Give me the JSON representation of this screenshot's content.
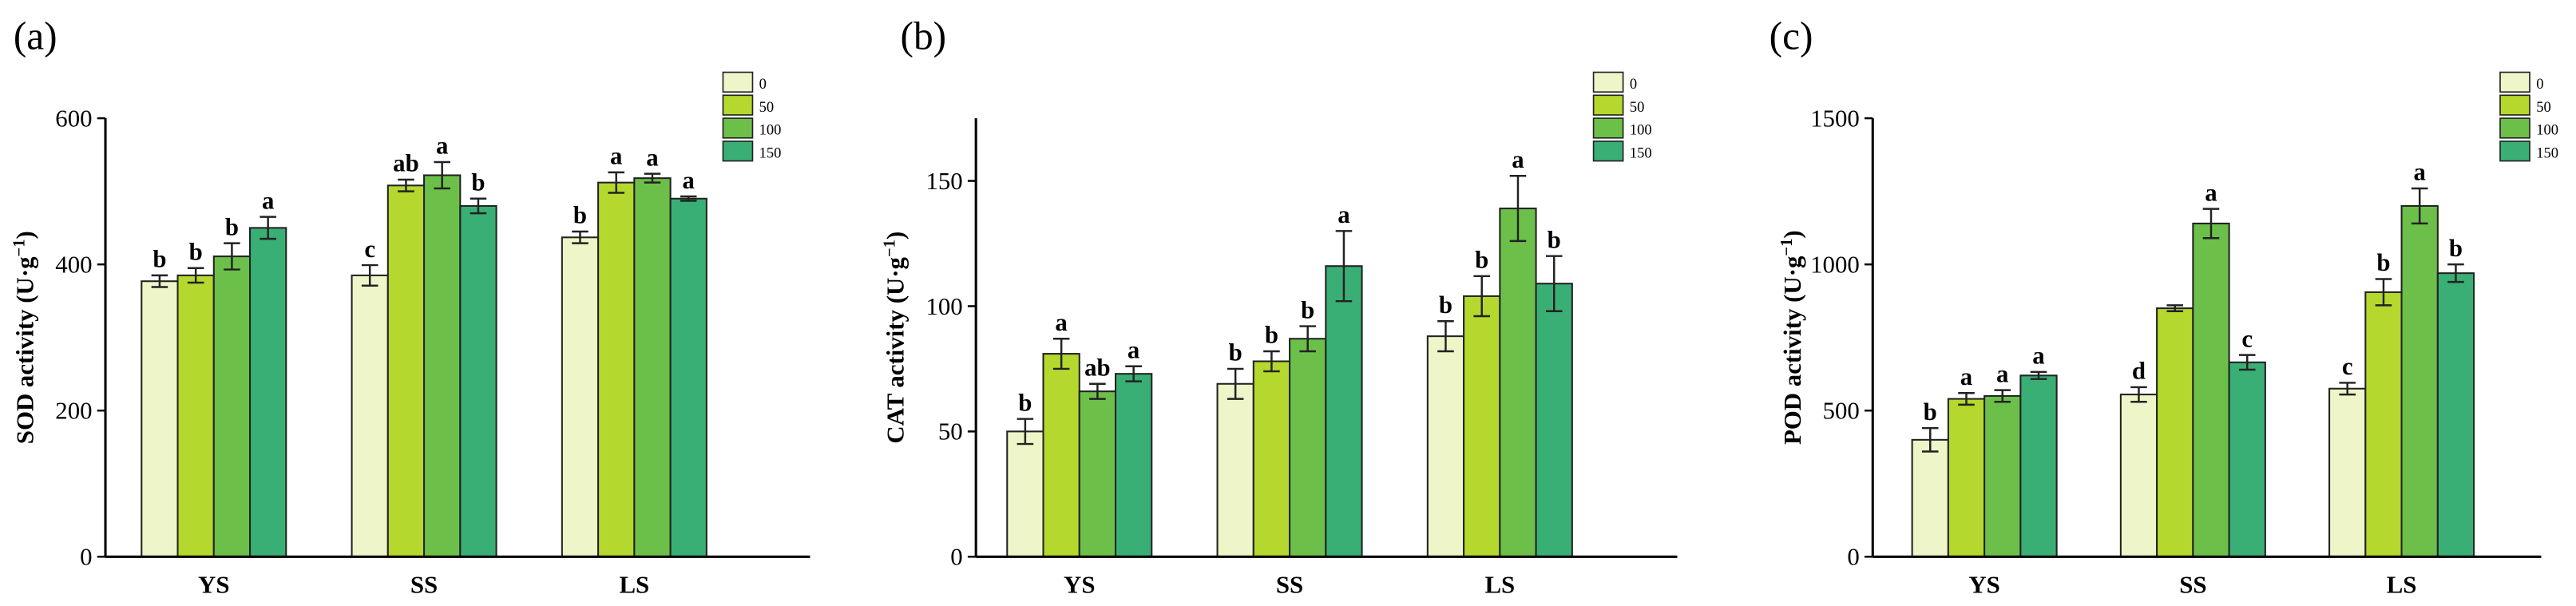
{
  "chart_data": [
    {
      "type": "bar",
      "panel_label": "(a)",
      "y_label": {
        "text": "SOD activity (U·g",
        "sup": "−1",
        "close": ")"
      },
      "categories": [
        "YS",
        "SS",
        "LS"
      ],
      "ylim": [
        0,
        600
      ],
      "yticks": [
        0,
        200,
        400,
        600
      ],
      "series": [
        {
          "name": "0",
          "color": "#eef5c8",
          "values": [
            377,
            385,
            437
          ],
          "errors": [
            8,
            14,
            8
          ],
          "letters": [
            "b",
            "c",
            "b"
          ]
        },
        {
          "name": "50",
          "color": "#b5d82e",
          "values": [
            385,
            508,
            512
          ],
          "errors": [
            10,
            8,
            14
          ],
          "letters": [
            "b",
            "ab",
            "a"
          ]
        },
        {
          "name": "100",
          "color": "#6cc04a",
          "values": [
            411,
            522,
            518
          ],
          "errors": [
            18,
            18,
            6
          ],
          "letters": [
            "b",
            "a",
            "a"
          ]
        },
        {
          "name": "150",
          "color": "#3aaf75",
          "values": [
            450,
            480,
            490
          ],
          "errors": [
            15,
            10,
            3
          ],
          "letters": [
            "a",
            "b",
            "a"
          ]
        }
      ]
    },
    {
      "type": "bar",
      "panel_label": "(b)",
      "y_label": {
        "text": "CAT activity (U·g",
        "sup": "−1",
        "close": ")"
      },
      "categories": [
        "YS",
        "SS",
        "LS"
      ],
      "ylim": [
        0,
        175
      ],
      "yticks": [
        0,
        50,
        100,
        150
      ],
      "series": [
        {
          "name": "0",
          "color": "#eef5c8",
          "values": [
            50,
            69,
            88
          ],
          "errors": [
            5,
            6,
            6
          ],
          "letters": [
            "b",
            "b",
            "b"
          ]
        },
        {
          "name": "50",
          "color": "#b5d82e",
          "values": [
            81,
            78,
            104
          ],
          "errors": [
            6,
            4,
            8
          ],
          "letters": [
            "a",
            "b",
            "b"
          ]
        },
        {
          "name": "100",
          "color": "#6cc04a",
          "values": [
            66,
            87,
            139
          ],
          "errors": [
            3,
            5,
            13
          ],
          "letters": [
            "ab",
            "b",
            "a"
          ]
        },
        {
          "name": "150",
          "color": "#3aaf75",
          "values": [
            73,
            116,
            109
          ],
          "errors": [
            3,
            14,
            11
          ],
          "letters": [
            "a",
            "a",
            "b"
          ]
        }
      ]
    },
    {
      "type": "bar",
      "panel_label": "(c)",
      "y_label": {
        "text": "POD activity (U·g",
        "sup": "−1",
        "close": ")"
      },
      "categories": [
        "YS",
        "SS",
        "LS"
      ],
      "ylim": [
        0,
        1500
      ],
      "yticks": [
        0,
        500,
        1000,
        1500
      ],
      "series": [
        {
          "name": "0",
          "color": "#eef5c8",
          "values": [
            400,
            555,
            575
          ],
          "errors": [
            40,
            25,
            20
          ],
          "letters": [
            "b",
            "d",
            "c"
          ]
        },
        {
          "name": "50",
          "color": "#b5d82e",
          "values": [
            540,
            850,
            905
          ],
          "errors": [
            20,
            10,
            45
          ],
          "letters": [
            "a",
            null,
            "b"
          ]
        },
        {
          "name": "100",
          "color": "#6cc04a",
          "values": [
            550,
            1140,
            1200
          ],
          "errors": [
            20,
            50,
            60
          ],
          "letters": [
            "a",
            "a",
            "a"
          ]
        },
        {
          "name": "150",
          "color": "#3aaf75",
          "values": [
            620,
            665,
            970
          ],
          "errors": [
            12,
            25,
            30
          ],
          "letters": [
            "a",
            "c",
            "b"
          ]
        }
      ]
    }
  ]
}
